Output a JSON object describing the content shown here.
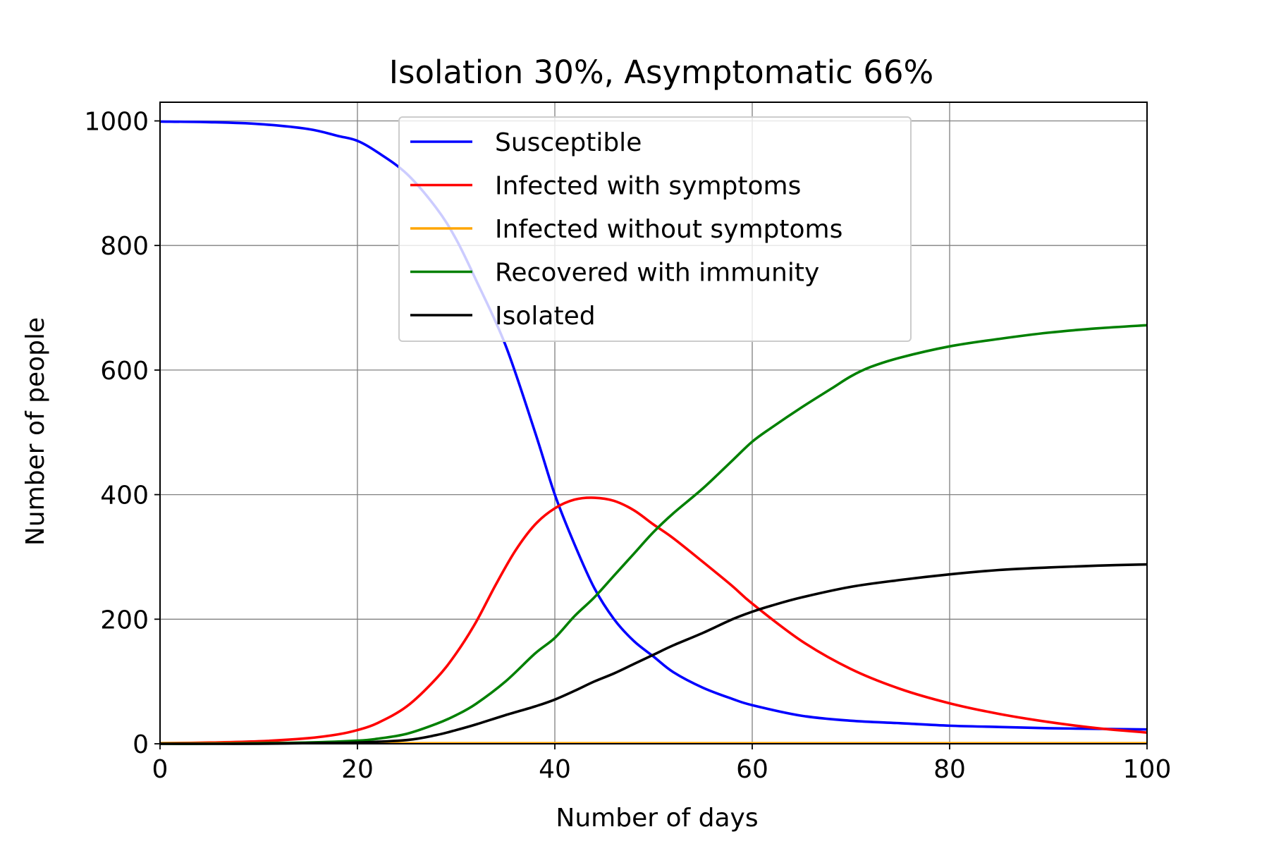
{
  "chart_data": {
    "type": "line",
    "title": "Isolation 30%, Asymptomatic 66%",
    "xlabel": "Number of days",
    "ylabel": "Number of people",
    "xlim": [
      0,
      100
    ],
    "ylim": [
      0,
      1030
    ],
    "xticks": [
      0,
      20,
      40,
      60,
      80,
      100
    ],
    "yticks": [
      0,
      200,
      400,
      600,
      800,
      1000
    ],
    "grid": true,
    "legend_position": "upper-center",
    "series": [
      {
        "name": "Susceptible",
        "color": "#0000ff",
        "x": [
          0,
          5,
          10,
          15,
          18,
          20,
          22,
          25,
          28,
          30,
          32,
          35,
          38,
          40,
          42,
          44,
          46,
          48,
          50,
          52,
          55,
          58,
          60,
          65,
          70,
          75,
          80,
          85,
          90,
          95,
          100
        ],
        "y": [
          999,
          998,
          995,
          987,
          976,
          968,
          950,
          915,
          860,
          810,
          745,
          640,
          500,
          400,
          320,
          250,
          200,
          165,
          140,
          115,
          90,
          72,
          62,
          45,
          37,
          33,
          29,
          27,
          25,
          24,
          23
        ]
      },
      {
        "name": "Infected with symptoms",
        "color": "#ff0000",
        "x": [
          0,
          5,
          10,
          15,
          18,
          20,
          22,
          25,
          28,
          30,
          32,
          34,
          36,
          38,
          40,
          42,
          44,
          46,
          48,
          50,
          52,
          55,
          58,
          60,
          65,
          70,
          75,
          80,
          85,
          90,
          95,
          100
        ],
        "y": [
          1,
          2,
          4,
          9,
          15,
          22,
          33,
          60,
          105,
          145,
          195,
          255,
          310,
          352,
          378,
          392,
          395,
          390,
          375,
          352,
          330,
          292,
          253,
          225,
          165,
          120,
          88,
          65,
          48,
          35,
          25,
          18
        ]
      },
      {
        "name": "Infected without symptoms",
        "color": "#ffa500",
        "x": [
          0,
          20,
          40,
          60,
          80,
          100
        ],
        "y": [
          1,
          1,
          1,
          1,
          1,
          1
        ]
      },
      {
        "name": "Recovered with immunity",
        "color": "#008000",
        "x": [
          0,
          5,
          10,
          15,
          20,
          22,
          25,
          28,
          30,
          32,
          35,
          38,
          40,
          42,
          44,
          46,
          48,
          50,
          52,
          55,
          58,
          60,
          62,
          65,
          68,
          70,
          72,
          75,
          80,
          85,
          90,
          95,
          100
        ],
        "y": [
          0,
          0,
          1,
          2,
          5,
          8,
          16,
          32,
          46,
          64,
          100,
          145,
          170,
          205,
          235,
          270,
          305,
          340,
          370,
          410,
          455,
          485,
          508,
          540,
          570,
          590,
          605,
          620,
          638,
          650,
          660,
          667,
          672
        ]
      },
      {
        "name": "Isolated",
        "color": "#000000",
        "x": [
          0,
          5,
          10,
          15,
          20,
          25,
          28,
          30,
          32,
          35,
          38,
          40,
          42,
          44,
          46,
          48,
          50,
          52,
          55,
          58,
          60,
          62,
          65,
          70,
          75,
          80,
          85,
          90,
          95,
          100
        ],
        "y": [
          0,
          0,
          0,
          1,
          2,
          6,
          14,
          22,
          31,
          46,
          60,
          71,
          85,
          100,
          113,
          128,
          143,
          158,
          178,
          200,
          212,
          222,
          235,
          252,
          263,
          272,
          279,
          283,
          286,
          288
        ]
      }
    ]
  }
}
